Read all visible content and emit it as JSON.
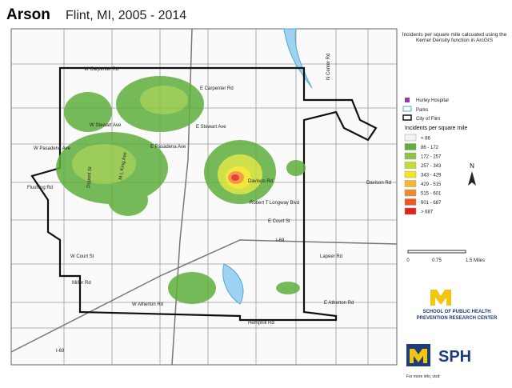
{
  "header": {
    "title": "Arson",
    "subtitle": "Flint, MI, 2005 - 2014"
  },
  "legend": {
    "note": "Incidents per square mile calcuated using the Kernel Density function in ArcGIS",
    "features": [
      "Hurley Hospital",
      "Parks",
      "City of Flint"
    ],
    "heading": "Incidents per square mile",
    "classes": [
      {
        "label": "< 86",
        "color": "#f2f2f2"
      },
      {
        "label": "86 - 172",
        "color": "#5fae3c"
      },
      {
        "label": "172 - 257",
        "color": "#8cc63f"
      },
      {
        "label": "257 - 343",
        "color": "#c8dc2c"
      },
      {
        "label": "343 - 429",
        "color": "#f2e61e"
      },
      {
        "label": "429 - 515",
        "color": "#f7b733"
      },
      {
        "label": "515 - 601",
        "color": "#f28a2a"
      },
      {
        "label": "601 - 687",
        "color": "#ec5a24"
      },
      {
        "label": "> 687",
        "color": "#e2231a"
      }
    ]
  },
  "scale": {
    "ticks": [
      "0",
      "0.75",
      "1.5 Miles"
    ],
    "north": "N"
  },
  "logos": {
    "school": "SCHOOL OF PUBLIC HEALTH",
    "center": "PREVENTION RESEARCH CENTER",
    "sph": "SPH",
    "footer": "For more info, visit:"
  },
  "streets": [
    "W Carpenter Rd",
    "E Carpenter Rd",
    "W Stewart Ave",
    "E Stewart Ave",
    "W Pasadena Ave",
    "E Pasadena Ave",
    "Davison Rd",
    "Davison Rd",
    "Robert T Longway Blvd",
    "E Court St",
    "W Court St",
    "Lapeer Rd",
    "I-69",
    "I-69",
    "E Atherton Rd",
    "W Atherton Rd",
    "Hemphill Rd",
    "Miller Rd",
    "Flushing Rd",
    "N Center Rd",
    "M L King Ave",
    "Dupont St"
  ]
}
